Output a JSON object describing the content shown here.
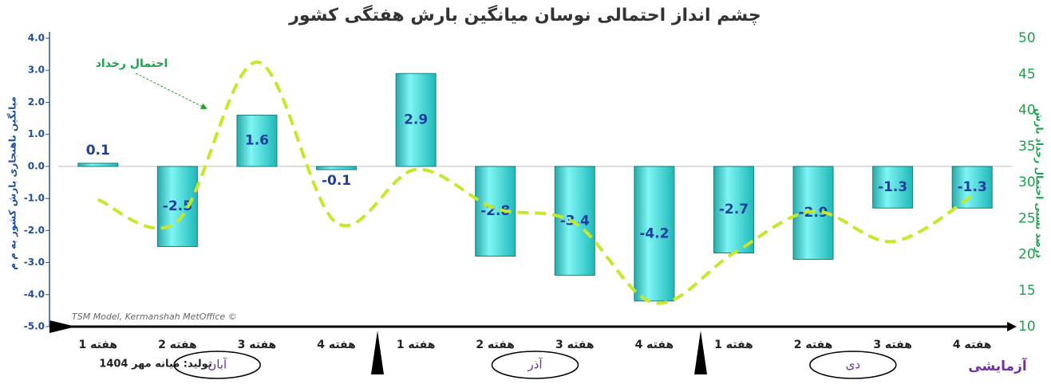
{
  "chart_data": {
    "type": "bar",
    "title": "چشم انداز احتمالی نوسان میانگین بارش هفتگی کشور",
    "y_label": "میانگین ناهنجاری بارش کشور به م م",
    "y2_label": "درصد نسبی احتمال رخداد بارش",
    "line_annotation": "احتمال رخداد",
    "credit": "TSM Model, Kermanshah MetOffice ©",
    "production": "تولید: میانه مهر 1404",
    "status": "آزمایشی",
    "months": [
      "آبان",
      "آذر",
      "دی"
    ],
    "categories": [
      "هفته 1",
      "هفته 2",
      "هفته 3",
      "هفته 4",
      "هفته 1",
      "هفته 2",
      "هفته 3",
      "هفته 4",
      "هفته 1",
      "هفته 2",
      "هفته 3",
      "هفته 4"
    ],
    "series": [
      {
        "type": "bar",
        "color": "#40e0e0",
        "values": [
          0.1,
          -2.5,
          1.6,
          -0.1,
          2.9,
          -2.8,
          -3.4,
          -4.2,
          -2.7,
          -2.9,
          -1.3,
          -1.3
        ]
      },
      {
        "type": "line",
        "axis": "y2",
        "color": "#c5e82a",
        "values": [
          27.6,
          24.6,
          46.7,
          24.4,
          31.8,
          26.4,
          24.4,
          13.3,
          20.2,
          26,
          21.8,
          28.1
        ]
      }
    ],
    "ylim": [
      -5,
      4
    ],
    "yticks": [
      {
        "value": -5,
        "label": "-5.0"
      },
      {
        "value": -4,
        "label": "-4.0"
      },
      {
        "value": -3,
        "label": "-3.0"
      },
      {
        "value": -2,
        "label": "-2.0"
      },
      {
        "value": -1,
        "label": "-1.0"
      },
      {
        "value": 0,
        "label": "0.0"
      },
      {
        "value": 1,
        "label": "1.0"
      },
      {
        "value": 2,
        "label": "2.0"
      },
      {
        "value": 3,
        "label": "3.0"
      },
      {
        "value": 4,
        "label": "4.0"
      }
    ],
    "y2lim": [
      10,
      50
    ],
    "y2ticks": [
      10,
      15,
      20,
      25,
      30,
      35,
      40,
      45,
      50
    ]
  }
}
